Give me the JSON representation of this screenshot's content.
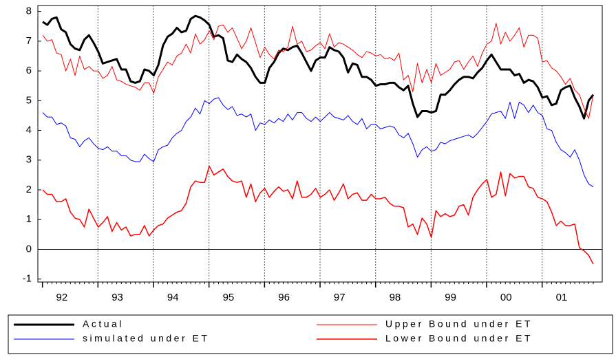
{
  "chart_data": {
    "type": "line",
    "categories": [
      null,
      null,
      null,
      null,
      "92",
      null,
      null,
      null,
      null,
      null,
      null,
      null,
      null,
      null,
      null,
      null,
      "93",
      null,
      null,
      null,
      null,
      null,
      null,
      null,
      null,
      null,
      null,
      null,
      "94",
      null,
      null,
      null,
      null,
      null,
      null,
      null,
      null,
      null,
      null,
      null,
      "95",
      null,
      null,
      null,
      null,
      null,
      null,
      null,
      null,
      null,
      null,
      null,
      "96",
      null,
      null,
      null,
      null,
      null,
      null,
      null,
      null,
      null,
      null,
      null,
      "97",
      null,
      null,
      null,
      null,
      null,
      null,
      null,
      null,
      null,
      null,
      null,
      "98",
      null,
      null,
      null,
      null,
      null,
      null,
      null,
      null,
      null,
      null,
      null,
      "99",
      null,
      null,
      null,
      null,
      null,
      null,
      null,
      null,
      null,
      null,
      null,
      "00",
      null,
      null,
      null,
      null,
      null,
      null,
      null,
      null,
      null,
      null,
      null,
      "01",
      null,
      null,
      null,
      null,
      null,
      null,
      null
    ],
    "series": [
      {
        "name": "Actual",
        "color": "#000000",
        "line_width": 3,
        "values": [
          7.65,
          7.55,
          7.75,
          7.8,
          7.4,
          7.3,
          6.9,
          6.75,
          6.7,
          7.05,
          7.2,
          6.95,
          6.65,
          6.25,
          6.3,
          6.35,
          6.4,
          6.05,
          6.05,
          5.65,
          5.6,
          5.65,
          6.05,
          6.0,
          5.85,
          6.2,
          6.85,
          7.15,
          7.25,
          7.45,
          7.3,
          7.35,
          7.75,
          7.85,
          7.8,
          7.7,
          7.55,
          7.15,
          7.2,
          7.1,
          6.35,
          6.3,
          6.55,
          6.4,
          6.3,
          6.1,
          5.8,
          5.6,
          5.6,
          6.1,
          6.3,
          6.6,
          6.75,
          6.7,
          6.8,
          6.85,
          6.6,
          6.3,
          6.0,
          6.35,
          6.45,
          6.45,
          6.8,
          6.7,
          6.65,
          6.45,
          5.95,
          6.25,
          6.2,
          5.8,
          5.8,
          5.7,
          5.5,
          5.55,
          5.55,
          5.6,
          5.6,
          5.45,
          5.35,
          5.5,
          4.9,
          4.45,
          4.65,
          4.65,
          4.6,
          4.65,
          5.2,
          5.2,
          5.35,
          5.55,
          5.7,
          5.8,
          5.8,
          5.75,
          5.95,
          6.1,
          6.35,
          6.55,
          6.3,
          6.05,
          6.05,
          6.05,
          5.85,
          5.9,
          5.6,
          5.7,
          5.65,
          5.45,
          5.1,
          5.15,
          4.85,
          4.9,
          5.35,
          5.45,
          5.5,
          5.1,
          4.8,
          4.4,
          5.0,
          5.2
        ]
      },
      {
        "name": "Upper Bound under ET",
        "color": "#ff0000",
        "line_width": 1,
        "values": [
          7.2,
          7.0,
          7.05,
          6.6,
          6.55,
          6.0,
          6.4,
          5.85,
          6.5,
          6.05,
          6.15,
          6.0,
          6.0,
          5.75,
          5.85,
          6.15,
          5.7,
          5.65,
          5.55,
          5.5,
          5.45,
          5.35,
          5.6,
          5.6,
          5.25,
          5.8,
          6.05,
          6.3,
          6.2,
          6.5,
          6.6,
          6.9,
          6.6,
          7.25,
          6.9,
          7.05,
          7.35,
          7.05,
          7.5,
          7.55,
          7.3,
          7.45,
          7.1,
          6.75,
          7.0,
          7.45,
          6.95,
          6.45,
          6.8,
          6.55,
          6.4,
          6.7,
          6.65,
          6.8,
          7.5,
          6.9,
          7.0,
          6.65,
          6.7,
          6.85,
          6.95,
          6.75,
          7.25,
          6.8,
          6.95,
          6.9,
          6.8,
          6.7,
          6.55,
          6.45,
          6.65,
          6.6,
          6.5,
          6.55,
          6.4,
          6.45,
          6.35,
          6.6,
          5.7,
          5.85,
          5.3,
          6.25,
          5.6,
          6.05,
          5.6,
          6.25,
          5.85,
          5.95,
          6.05,
          6.3,
          6.35,
          6.05,
          6.3,
          6.5,
          6.15,
          6.6,
          6.9,
          7.0,
          7.6,
          6.9,
          7.3,
          7.0,
          7.2,
          7.45,
          6.8,
          7.2,
          7.2,
          7.1,
          6.3,
          6.35,
          6.1,
          6.0,
          5.8,
          5.55,
          5.75,
          5.35,
          5.2,
          4.75,
          4.4,
          5.2
        ]
      },
      {
        "name": "simulated under ET",
        "color": "#0000ff",
        "line_width": 1,
        "values": [
          4.6,
          4.45,
          4.45,
          4.2,
          4.25,
          4.15,
          3.75,
          3.7,
          3.45,
          3.65,
          3.75,
          3.55,
          3.4,
          3.35,
          3.45,
          3.3,
          3.3,
          3.15,
          3.15,
          3.0,
          2.95,
          2.95,
          3.2,
          3.05,
          2.95,
          3.35,
          3.45,
          3.5,
          3.75,
          3.9,
          4.0,
          4.3,
          4.45,
          4.75,
          4.55,
          5.0,
          4.9,
          5.05,
          5.1,
          4.85,
          4.7,
          4.8,
          4.5,
          4.55,
          4.45,
          4.55,
          4.0,
          4.25,
          4.2,
          4.35,
          4.25,
          4.4,
          4.3,
          4.55,
          4.35,
          4.6,
          4.6,
          4.4,
          4.3,
          4.45,
          4.3,
          4.45,
          4.6,
          4.45,
          4.4,
          4.35,
          4.5,
          4.3,
          4.2,
          4.4,
          4.05,
          4.2,
          4.2,
          4.05,
          4.1,
          4.15,
          4.1,
          3.85,
          3.75,
          3.9,
          3.55,
          3.1,
          3.35,
          3.45,
          3.3,
          3.35,
          3.6,
          3.55,
          3.65,
          3.7,
          3.75,
          3.8,
          3.85,
          3.75,
          3.9,
          4.1,
          4.3,
          4.55,
          4.6,
          4.65,
          4.4,
          4.95,
          4.4,
          4.95,
          4.85,
          4.6,
          4.85,
          4.6,
          4.5,
          4.05,
          4.0,
          3.6,
          3.35,
          3.25,
          3.1,
          3.35,
          3.0,
          2.5,
          2.2,
          2.1
        ]
      },
      {
        "name": "Lower Bound under ET",
        "color": "#ff0000",
        "line_width": 1.5,
        "values": [
          2.0,
          1.85,
          1.85,
          1.6,
          1.6,
          1.7,
          1.25,
          1.05,
          1.0,
          0.75,
          1.35,
          1.05,
          0.75,
          0.9,
          1.1,
          0.6,
          0.9,
          0.65,
          0.75,
          0.45,
          0.5,
          0.5,
          0.8,
          0.45,
          0.65,
          0.8,
          0.85,
          1.05,
          1.15,
          1.25,
          1.3,
          1.55,
          2.1,
          2.3,
          2.25,
          2.25,
          2.8,
          2.5,
          2.6,
          2.7,
          2.45,
          2.3,
          2.25,
          2.3,
          1.75,
          2.2,
          1.6,
          1.9,
          2.05,
          1.75,
          1.95,
          2.1,
          1.95,
          2.0,
          1.7,
          2.3,
          1.75,
          1.75,
          1.85,
          2.05,
          1.75,
          1.85,
          2.0,
          1.65,
          1.9,
          2.2,
          1.7,
          1.85,
          1.9,
          1.65,
          1.65,
          1.85,
          1.7,
          1.7,
          1.75,
          1.55,
          1.45,
          1.45,
          1.4,
          0.75,
          0.85,
          0.5,
          1.05,
          0.85,
          0.4,
          1.3,
          1.1,
          1.2,
          1.1,
          1.15,
          1.45,
          1.5,
          1.15,
          1.75,
          2.0,
          2.2,
          2.35,
          1.75,
          1.85,
          2.6,
          1.8,
          2.55,
          2.4,
          2.45,
          2.45,
          2.1,
          2.05,
          1.75,
          1.7,
          1.6,
          1.25,
          0.8,
          0.95,
          0.8,
          0.8,
          0.85,
          0.05,
          -0.05,
          -0.2,
          -0.5
        ]
      }
    ],
    "ylim": [
      -1.1,
      8.2
    ],
    "yticks": [
      -1,
      0,
      1,
      2,
      3,
      4,
      5,
      6,
      7,
      8
    ],
    "zero_line": true,
    "year_grid": true
  }
}
